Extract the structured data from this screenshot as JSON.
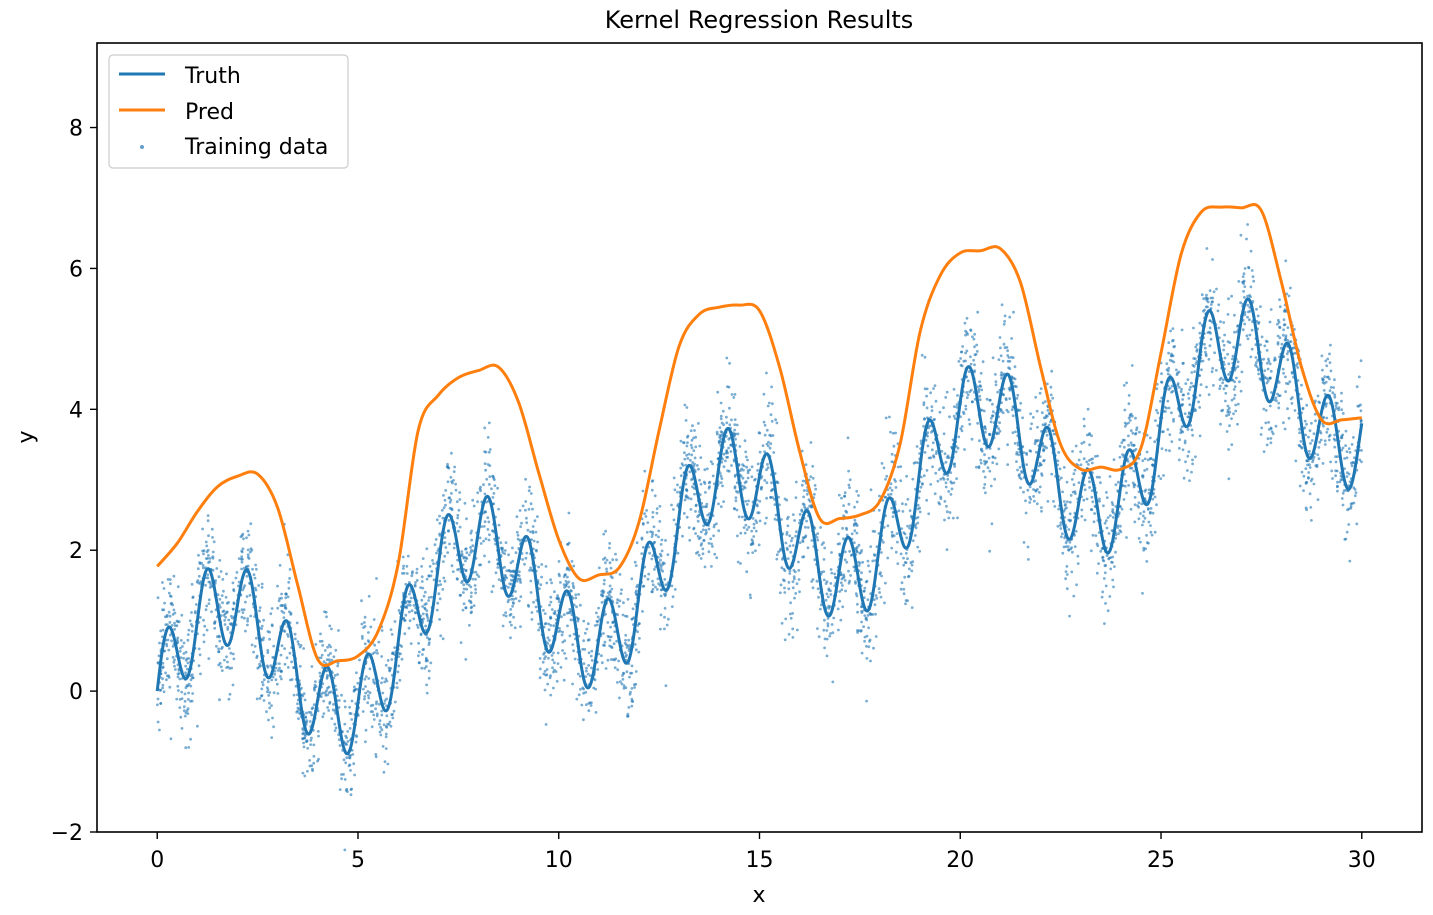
{
  "chart_data": {
    "type": "line",
    "title": "Kernel Regression Results",
    "xlabel": "x",
    "ylabel": "y",
    "xlim": [
      -1.5,
      31.5
    ],
    "ylim": [
      -2,
      9.2
    ],
    "x_ticks": [
      0,
      5,
      10,
      15,
      20,
      25,
      30
    ],
    "y_ticks": [
      -2,
      0,
      2,
      4,
      6,
      8
    ],
    "y_tick_labels": [
      "−2",
      "0",
      "2",
      "4",
      "6",
      "8"
    ],
    "grid": false,
    "legend_position": "top-left",
    "series": [
      {
        "name": "Truth",
        "style": "line",
        "color": "#1f77b4",
        "formula": "0.15x + sin(x) + 0.6 sin(6.3x)",
        "x_range": [
          0,
          30
        ]
      },
      {
        "name": "Pred",
        "style": "line",
        "color": "#ff7f0e",
        "x": [
          0,
          0.5,
          1,
          1.5,
          2,
          2.5,
          3,
          3.5,
          4,
          4.5,
          5,
          5.5,
          6,
          6.5,
          7,
          7.5,
          8,
          8.5,
          9,
          9.5,
          10,
          10.5,
          11,
          11.5,
          12,
          12.5,
          13,
          13.5,
          14,
          14.5,
          15,
          15.5,
          16,
          16.5,
          17,
          17.5,
          18,
          18.5,
          19,
          19.5,
          20,
          20.5,
          21,
          21.5,
          22,
          22.5,
          23,
          23.5,
          24,
          24.5,
          25,
          25.5,
          26,
          26.5,
          27,
          27.5,
          28,
          28.5,
          29,
          29.5,
          30
        ],
        "values": [
          1.77,
          2.1,
          2.55,
          2.9,
          3.05,
          3.08,
          2.6,
          1.5,
          0.45,
          0.43,
          0.5,
          0.85,
          1.8,
          3.7,
          4.2,
          4.45,
          4.55,
          4.6,
          4.1,
          3.1,
          2.15,
          1.6,
          1.65,
          1.75,
          2.4,
          3.7,
          4.9,
          5.35,
          5.45,
          5.48,
          5.4,
          4.6,
          3.4,
          2.45,
          2.45,
          2.5,
          2.7,
          3.5,
          5.1,
          5.9,
          6.22,
          6.25,
          6.28,
          5.8,
          4.6,
          3.5,
          3.15,
          3.18,
          3.15,
          3.45,
          4.8,
          6.2,
          6.8,
          6.87,
          6.86,
          6.82,
          5.8,
          4.6,
          3.85,
          3.85,
          3.88
        ]
      },
      {
        "name": "Training data",
        "style": "scatter",
        "color": "#1f77b4",
        "n_points": 5000,
        "noise_sd": 0.45,
        "x_range": [
          0,
          30
        ]
      }
    ]
  }
}
